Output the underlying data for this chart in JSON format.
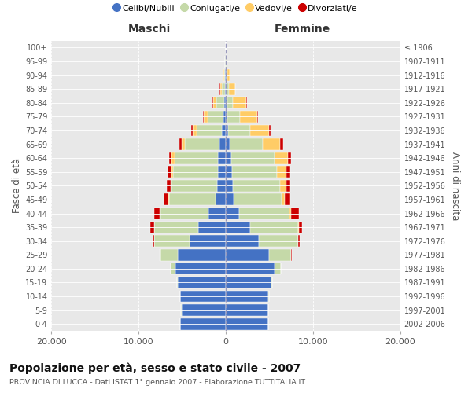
{
  "age_groups": [
    "0-4",
    "5-9",
    "10-14",
    "15-19",
    "20-24",
    "25-29",
    "30-34",
    "35-39",
    "40-44",
    "45-49",
    "50-54",
    "55-59",
    "60-64",
    "65-69",
    "70-74",
    "75-79",
    "80-84",
    "85-89",
    "90-94",
    "95-99",
    "100+"
  ],
  "birth_years": [
    "2002-2006",
    "1997-2001",
    "1992-1996",
    "1987-1991",
    "1982-1986",
    "1977-1981",
    "1972-1976",
    "1967-1971",
    "1962-1966",
    "1957-1961",
    "1952-1956",
    "1947-1951",
    "1942-1946",
    "1937-1941",
    "1932-1936",
    "1927-1931",
    "1922-1926",
    "1917-1921",
    "1912-1916",
    "1907-1911",
    "≤ 1906"
  ],
  "males": {
    "celibi": [
      5200,
      5100,
      5200,
      5500,
      5800,
      5500,
      4200,
      3200,
      2000,
      1200,
      1000,
      950,
      900,
      700,
      500,
      300,
      200,
      120,
      60,
      30,
      20
    ],
    "coniugati": [
      2,
      5,
      20,
      100,
      500,
      2000,
      4000,
      5000,
      5500,
      5300,
      5200,
      5100,
      5000,
      4000,
      2800,
      1800,
      900,
      350,
      100,
      30,
      10
    ],
    "vedovi": [
      0,
      0,
      1,
      2,
      5,
      5,
      10,
      30,
      50,
      100,
      150,
      200,
      300,
      400,
      500,
      400,
      350,
      200,
      80,
      20,
      5
    ],
    "divorziati": [
      0,
      0,
      2,
      5,
      20,
      50,
      200,
      400,
      700,
      500,
      400,
      400,
      300,
      200,
      150,
      100,
      50,
      20,
      10,
      5,
      2
    ]
  },
  "females": {
    "nubili": [
      4900,
      4900,
      4900,
      5200,
      5600,
      5000,
      3800,
      2800,
      1500,
      900,
      800,
      700,
      600,
      450,
      300,
      200,
      150,
      100,
      60,
      30,
      20
    ],
    "coniugate": [
      2,
      5,
      30,
      150,
      700,
      2500,
      4500,
      5500,
      5800,
      5500,
      5400,
      5200,
      5000,
      3800,
      2500,
      1400,
      700,
      300,
      100,
      30,
      10
    ],
    "vedove": [
      0,
      0,
      0,
      2,
      5,
      10,
      20,
      60,
      150,
      400,
      700,
      1000,
      1500,
      2000,
      2200,
      2000,
      1500,
      700,
      250,
      50,
      5
    ],
    "divorziate": [
      0,
      0,
      2,
      5,
      20,
      50,
      200,
      400,
      900,
      600,
      500,
      500,
      400,
      300,
      150,
      100,
      50,
      20,
      10,
      5,
      2
    ]
  },
  "colors": {
    "celibi": "#4472C4",
    "coniugati": "#C5D9A8",
    "vedovi": "#FFCC66",
    "divorziati": "#CC0000"
  },
  "title": "Popolazione per età, sesso e stato civile - 2007",
  "subtitle": "PROVINCIA DI LUCCA - Dati ISTAT 1° gennaio 2007 - Elaborazione TUTTITALIA.IT",
  "ylabel_left": "Fasce di età",
  "ylabel_right": "Anni di nascita",
  "xlabel_left": "Maschi",
  "xlabel_right": "Femmine",
  "xlim": 20000,
  "background_color": "#eaeaea",
  "plot_bg": "#e8e8e8",
  "legend_labels": [
    "Celibi/Nubili",
    "Coniugati/e",
    "Vedovi/e",
    "Divorziati/e"
  ]
}
